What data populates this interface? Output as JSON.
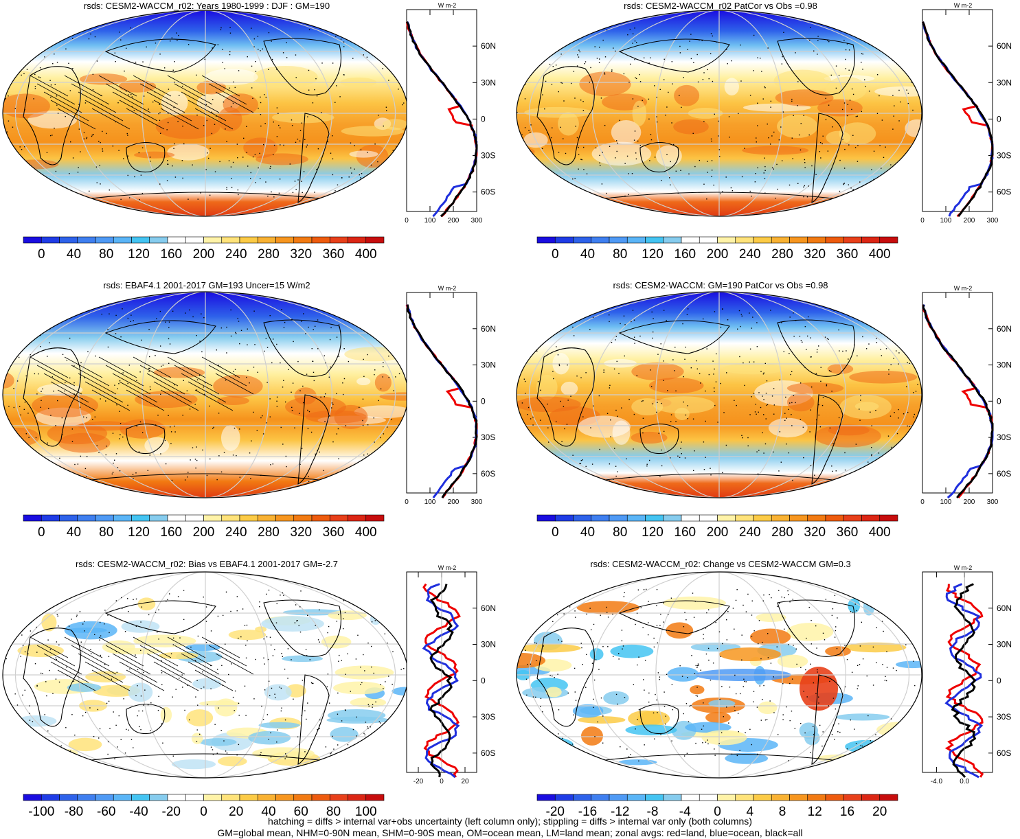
{
  "chart_data": [
    {
      "type": "heatmap",
      "title": "rsds: CESM2-WACCM_r02: Years 1980-1999 : DJF : GM=190",
      "colorbar": {
        "ticks": [
          "0",
          "40",
          "80",
          "120",
          "160",
          "200",
          "240",
          "280",
          "320",
          "360",
          "400"
        ],
        "range": [
          -20,
          420
        ]
      },
      "profile": {
        "unit_label": "W m-2",
        "xticks": [
          "0",
          "100",
          "200",
          "300"
        ],
        "xlim": [
          0,
          300
        ],
        "yticks": [
          "60N",
          "30N",
          "0",
          "30S",
          "60S"
        ],
        "series": [
          {
            "name": "land",
            "color": "#ee0000"
          },
          {
            "name": "ocean",
            "color": "#1f2fdd"
          },
          {
            "name": "all",
            "color": "#000000"
          }
        ]
      }
    },
    {
      "type": "heatmap",
      "title": "rsds: CESM2-WACCM_r02 PatCor vs Obs =0.98",
      "colorbar": {
        "ticks": [
          "0",
          "40",
          "80",
          "120",
          "160",
          "200",
          "240",
          "280",
          "320",
          "360",
          "400"
        ],
        "range": [
          -20,
          420
        ]
      },
      "profile": {
        "unit_label": "W m-2",
        "xticks": [
          "0",
          "100",
          "200",
          "300"
        ],
        "xlim": [
          0,
          300
        ],
        "yticks": [
          "60N",
          "30N",
          "0",
          "30S",
          "60S"
        ],
        "series": [
          {
            "name": "land",
            "color": "#ee0000"
          },
          {
            "name": "ocean",
            "color": "#1f2fdd"
          },
          {
            "name": "all",
            "color": "#000000"
          }
        ]
      }
    },
    {
      "type": "heatmap",
      "title": "rsds: EBAF4.1 2001-2017 GM=193 Uncer=15 W/m2",
      "colorbar": {
        "ticks": [
          "0",
          "40",
          "80",
          "120",
          "160",
          "200",
          "240",
          "280",
          "320",
          "360",
          "400"
        ],
        "range": [
          -20,
          420
        ]
      },
      "profile": {
        "unit_label": "W m-2",
        "xticks": [
          "0",
          "100",
          "200",
          "300"
        ],
        "xlim": [
          0,
          300
        ],
        "yticks": [
          "60N",
          "30N",
          "0",
          "30S",
          "60S"
        ],
        "series": [
          {
            "name": "land",
            "color": "#ee0000"
          },
          {
            "name": "ocean",
            "color": "#1f2fdd"
          },
          {
            "name": "all",
            "color": "#000000"
          }
        ]
      }
    },
    {
      "type": "heatmap",
      "title": "rsds: CESM2-WACCM: GM=190 PatCor vs Obs =0.98",
      "colorbar": {
        "ticks": [
          "0",
          "40",
          "80",
          "120",
          "160",
          "200",
          "240",
          "280",
          "320",
          "360",
          "400"
        ],
        "range": [
          -20,
          420
        ]
      },
      "profile": {
        "unit_label": "W m-2",
        "xticks": [
          "0",
          "100",
          "200",
          "300"
        ],
        "xlim": [
          0,
          300
        ],
        "yticks": [
          "60N",
          "30N",
          "0",
          "30S",
          "60S"
        ],
        "series": [
          {
            "name": "land",
            "color": "#ee0000"
          },
          {
            "name": "ocean",
            "color": "#1f2fdd"
          },
          {
            "name": "all",
            "color": "#000000"
          }
        ]
      }
    },
    {
      "type": "heatmap",
      "title": "rsds: CESM2-WACCM_r02: Bias vs EBAF4.1 2001-2017 GM=-2.7",
      "colorbar": {
        "ticks": [
          "-100",
          "-80",
          "-60",
          "-40",
          "-20",
          "0",
          "20",
          "40",
          "60",
          "80",
          "100"
        ],
        "range": [
          -110,
          110
        ]
      },
      "profile": {
        "unit_label": "W m-2",
        "xticks": [
          "-20",
          "0",
          "20"
        ],
        "xlim": [
          -30,
          30
        ],
        "yticks": [
          "60N",
          "30N",
          "0",
          "30S",
          "60S"
        ],
        "series": [
          {
            "name": "land",
            "color": "#ee0000"
          },
          {
            "name": "ocean",
            "color": "#1f2fdd"
          },
          {
            "name": "all",
            "color": "#000000"
          }
        ]
      }
    },
    {
      "type": "heatmap",
      "title": "rsds: CESM2-WACCM_r02: Change vs CESM2-WACCM GM=0.3",
      "colorbar": {
        "ticks": [
          "-20",
          "-16",
          "-12",
          "-8",
          "-4",
          "0",
          "4",
          "8",
          "12",
          "16",
          "20"
        ],
        "range": [
          -22,
          22
        ]
      },
      "profile": {
        "unit_label": "W m-2",
        "xticks": [
          "-4.0",
          "0.0"
        ],
        "xlim": [
          -6,
          4
        ],
        "yticks": [
          "60N",
          "30N",
          "0",
          "30S",
          "60S"
        ],
        "series": [
          {
            "name": "land",
            "color": "#ee0000"
          },
          {
            "name": "ocean",
            "color": "#1f2fdd"
          },
          {
            "name": "all",
            "color": "#000000"
          }
        ]
      }
    }
  ],
  "colors": [
    "#1a0de0",
    "#1f3ce6",
    "#2e62ea",
    "#3f7ff0",
    "#4f9af5",
    "#5ab5f7",
    "#44c4f2",
    "#86ccee",
    "#ffffff",
    "#ffffff",
    "#fff3a8",
    "#ffe37a",
    "#fccb46",
    "#f9b233",
    "#f7961f",
    "#f27a12",
    "#ee5b0e",
    "#e8401a",
    "#dc2614",
    "#c70d0d"
  ],
  "footer": {
    "line1": "hatching = diffs > internal var+obs uncertainty (left column only); stippling = diffs > internal var only (both columns)",
    "line2": "GM=global mean, NHM=0-90N mean, SHM=0-90S mean, OM=ocean mean, LM=land mean; zonal avgs: red=land, blue=ocean, black=all"
  }
}
